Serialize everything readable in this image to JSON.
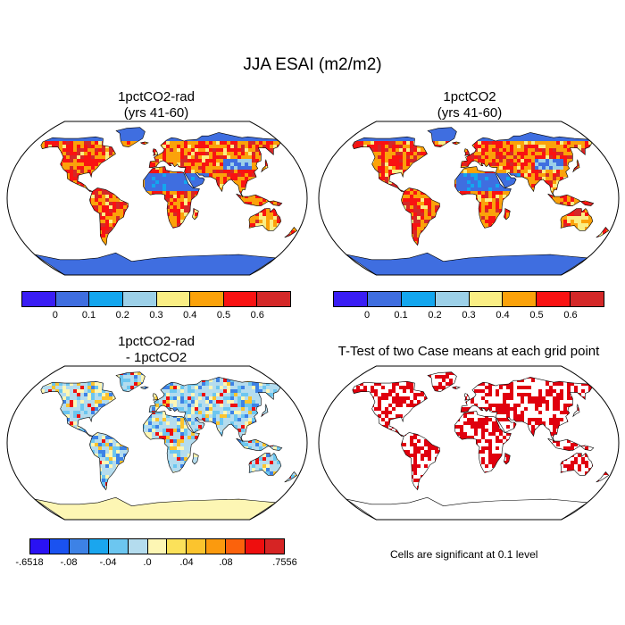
{
  "figure": {
    "title": "JJA ESAI (m2/m2)"
  },
  "panels": [
    {
      "title_line1": "1pctCO2-rad",
      "title_line2": "(yrs 41-60)"
    },
    {
      "title_line1": "1pctCO2",
      "title_line2": "(yrs 41-60)"
    },
    {
      "title_line1": "1pctCO2-rad",
      "title_line2": "- 1pctCO2"
    },
    {
      "title_line1": "T-Test of two Case means at each grid point",
      "title_line2": ""
    }
  ],
  "colorbars": {
    "absolute": {
      "colors": [
        "#3a1ef5",
        "#3f6ee0",
        "#13a6ee",
        "#9cd0e8",
        "#faee84",
        "#fba20a",
        "#f91212",
        "#d42828"
      ],
      "labels": [
        "0",
        "0.1",
        "0.2",
        "0.3",
        "0.4",
        "0.5",
        "0.6"
      ]
    },
    "difference": {
      "colors": [
        "#2a12f3",
        "#1a52f0",
        "#3d82e6",
        "#1aa6ee",
        "#6cc6f0",
        "#b4dcee",
        "#fdf6b4",
        "#fbe15a",
        "#fbc42e",
        "#fb9a0e",
        "#fb620c",
        "#ee0e0e",
        "#d62424"
      ],
      "labels": [
        "-.6518",
        "-.08",
        "-.04",
        ".0",
        ".04",
        ".08",
        ".7556"
      ]
    }
  },
  "note": "Cells are significant at 0.1 level",
  "colors": {
    "ocean": "#ffffff",
    "ttest_signif": "#e0000e"
  }
}
